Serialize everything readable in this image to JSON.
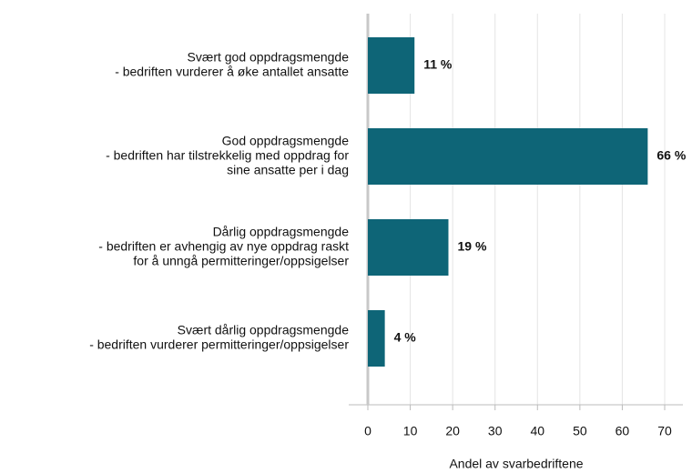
{
  "chart_data": {
    "type": "barh",
    "categories": [
      [
        "Svært god oppdragsmengde",
        "- bedriften vurderer å øke antallet ansatte"
      ],
      [
        "God oppdragsmengde",
        "- bedriften har tilstrekkelig med oppdrag for",
        "sine ansatte per i dag"
      ],
      [
        "Dårlig oppdragsmengde",
        "- bedriften er avhengig av nye oppdrag raskt",
        "for å unngå permitteringer/oppsigelser"
      ],
      [
        "Svært dårlig oppdragsmengde",
        "- bedriften vurderer permitteringer/oppsigelser"
      ]
    ],
    "values": [
      11,
      66,
      19,
      4
    ],
    "value_labels": [
      "11 %",
      "66 %",
      "19 %",
      "4 %"
    ],
    "color": "#0e6577",
    "xlabel": "Andel av svarbedriftene",
    "xlim": [
      0,
      70
    ],
    "xticks": [
      0,
      10,
      20,
      30,
      40,
      50,
      60,
      70
    ],
    "grid": true
  }
}
